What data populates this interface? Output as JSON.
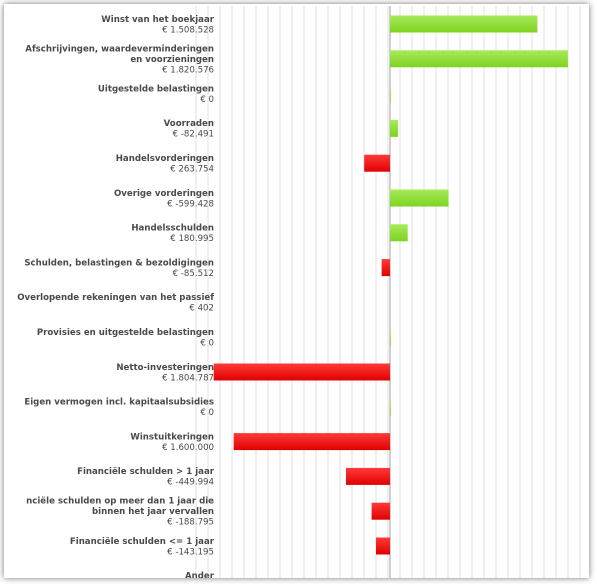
{
  "colors": {
    "positive": "#7ed321",
    "positive_light": "#a8ea5a",
    "negative": "#e00000",
    "negative_light": "#ff3a3a",
    "grid": "#e2e2e2",
    "axis": "#a0a0a0"
  },
  "chart_data": {
    "type": "bar",
    "orientation": "horizontal",
    "grid": true,
    "categories": [
      "Winst van het boekjaar",
      "Afschrijvingen, waardeverminderingen en voorzieningen",
      "Uitgestelde belastingen",
      "Voorraden",
      "Handelsvorderingen",
      "Overige vorderingen",
      "Handelsschulden",
      "Schulden, belastingen & bezoldigingen",
      "Overlopende rekeningen van het passief",
      "Provisies en uitgestelde belastingen",
      "Netto-investeringen",
      "Eigen vermogen incl. kapitaalsubsidies",
      "Winstuitkeringen",
      "Financiële schulden > 1 jaar",
      "nciële schulden op meer dan 1 jaar die binnen het jaar vervallen",
      "Financiële schulden <= 1 jaar",
      "Ander"
    ],
    "value_labels": [
      "€ 1.508.528",
      "€ 1.820.576",
      "€ 0",
      "€ -82.491",
      "€ 263.754",
      "€ -599.428",
      "€ 180.995",
      "€ -85.512",
      "€ 402",
      "€ 0",
      "€ 1.804.787",
      "€ 0",
      "€ 1.600.000",
      "€ -449.994",
      "€ -188.795",
      "€ -143.195",
      ""
    ],
    "values": [
      1508528,
      1820576,
      0,
      82491,
      -263754,
      599428,
      180995,
      -85512,
      402,
      0,
      -1804787,
      0,
      -1600000,
      -449994,
      -188795,
      -143195,
      0
    ],
    "xlim": [
      -2000000,
      2000000
    ]
  }
}
